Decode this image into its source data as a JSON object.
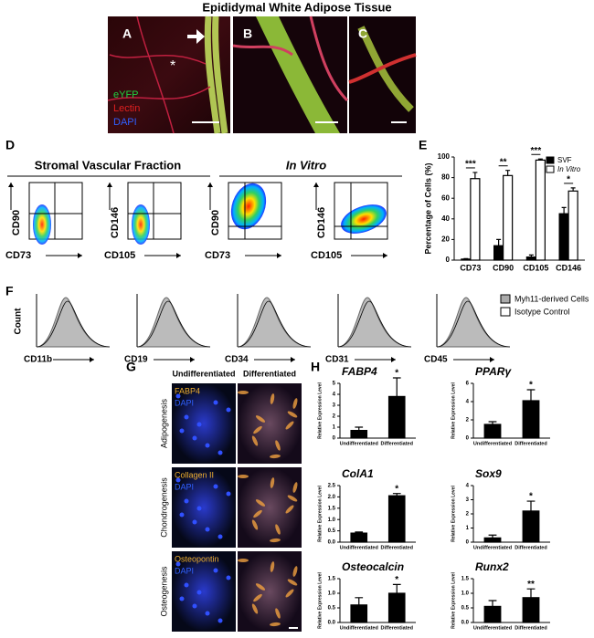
{
  "title": "Epididymal White Adipose Tissue",
  "panel_a": {
    "letter": "A",
    "channels": [
      "eYFP",
      "Lectin",
      "DAPI"
    ],
    "marker": "*"
  },
  "panel_b": {
    "letter": "B"
  },
  "panel_c": {
    "letter": "C"
  },
  "panel_d": {
    "letter": "D",
    "groups": [
      "Stromal Vascular Fraction",
      "In Vitro"
    ],
    "plots": [
      {
        "y": "CD90",
        "x": "CD73"
      },
      {
        "y": "CD146",
        "x": "CD105"
      },
      {
        "y": "CD90",
        "x": "CD73"
      },
      {
        "y": "CD146",
        "x": "CD105"
      }
    ]
  },
  "panel_e": {
    "letter": "E"
  },
  "panel_f": {
    "letter": "F",
    "y_label": "Count",
    "markers": [
      "CD11b",
      "CD19",
      "CD34",
      "CD31",
      "CD45"
    ],
    "legend": [
      "Myh11-derived Cells",
      "Isotype Control"
    ]
  },
  "panel_g": {
    "letter": "G",
    "columns": [
      "Undifferentiated",
      "Differentiated"
    ],
    "rows": [
      {
        "name": "Adipogenesis",
        "stain": "FABP4",
        "counter": "DAPI"
      },
      {
        "name": "Chondrogenesis",
        "stain": "Collagen II",
        "counter": "DAPI"
      },
      {
        "name": "Osteogenesis",
        "stain": "Osteopontin",
        "counter": "DAPI"
      }
    ]
  },
  "panel_h": {
    "letter": "H"
  },
  "chart_data": [
    {
      "type": "bar",
      "y_label": "Percentage of Cells (%)",
      "categories": [
        "CD73",
        "CD90",
        "CD105",
        "CD146"
      ],
      "series": [
        {
          "name": "SVF",
          "color": "#000000",
          "values": [
            1,
            14,
            3,
            45
          ],
          "errors": [
            0.5,
            6,
            2,
            6
          ]
        },
        {
          "name": "In Vitro",
          "color": "#ffffff",
          "values": [
            79,
            82,
            97,
            67
          ],
          "errors": [
            6,
            5,
            1,
            3
          ]
        }
      ],
      "annotations": [
        "***",
        "**",
        "***",
        "*"
      ],
      "ylim": [
        0,
        100
      ],
      "yticks": [
        0,
        20,
        40,
        60,
        80,
        100
      ],
      "legend": "upper right"
    },
    {
      "type": "bar",
      "title": "FABP4",
      "y_label": "Relative Expression Level",
      "categories": [
        "Undifferentiated",
        "Differentiated"
      ],
      "color": "#000000",
      "values": [
        0.7,
        3.8
      ],
      "errors": [
        0.3,
        1.7
      ],
      "annotation": "*",
      "ylim": [
        0,
        5
      ],
      "yticks": [
        0,
        1,
        2,
        3,
        4,
        5
      ]
    },
    {
      "type": "bar",
      "title": "PPARγ",
      "y_label": "Relative Expression Level",
      "categories": [
        "Undifferentiated",
        "Differentiated"
      ],
      "color": "#000000",
      "values": [
        1.5,
        4.1
      ],
      "errors": [
        0.3,
        1.2
      ],
      "annotation": "*",
      "ylim": [
        0,
        6
      ],
      "yticks": [
        0,
        2,
        4,
        6
      ]
    },
    {
      "type": "bar",
      "title": "ColA1",
      "y_label": "Relative Expression Level",
      "categories": [
        "Undifferentiated",
        "Differentiated"
      ],
      "color": "#000000",
      "values": [
        0.4,
        2.05
      ],
      "errors": [
        0.05,
        0.1
      ],
      "annotation": "*",
      "ylim": [
        0,
        2.5
      ],
      "yticks": [
        {
          "value": 0,
          "label": "0.0"
        },
        0.5,
        {
          "value": 1,
          "label": "1.0"
        },
        1.5,
        {
          "value": 2,
          "label": "2.0"
        },
        2.5
      ]
    },
    {
      "type": "bar",
      "title": "Sox9",
      "y_label": "Relative Expression Level",
      "categories": [
        "Undifferentiated",
        "Differentiated"
      ],
      "color": "#000000",
      "values": [
        0.3,
        2.2
      ],
      "errors": [
        0.2,
        0.7
      ],
      "annotation": "*",
      "ylim": [
        0,
        4
      ],
      "yticks": [
        0,
        1,
        2,
        3,
        4
      ]
    },
    {
      "type": "bar",
      "title": "Osteocalcin",
      "y_label": "Relative Expression Level",
      "categories": [
        "Undifferentiated",
        "Differentiated"
      ],
      "color": "#000000",
      "values": [
        0.6,
        1.0
      ],
      "errors": [
        0.25,
        0.3
      ],
      "annotation": "*",
      "ylim": [
        0,
        1.5
      ],
      "yticks": [
        {
          "value": 0,
          "label": "0.0"
        },
        0.5,
        {
          "value": 1,
          "label": "1.0"
        },
        1.5
      ]
    },
    {
      "type": "bar",
      "title": "Runx2",
      "y_label": "Relative Expression Level",
      "categories": [
        "Undifferentiated",
        "Differentiated"
      ],
      "color": "#000000",
      "values": [
        0.55,
        0.85
      ],
      "errors": [
        0.2,
        0.3
      ],
      "annotation": "**",
      "ylim": [
        0,
        1.5
      ],
      "yticks": [
        {
          "value": 0,
          "label": "0.0"
        },
        0.5,
        {
          "value": 1,
          "label": "1.0"
        },
        1.5
      ]
    }
  ]
}
